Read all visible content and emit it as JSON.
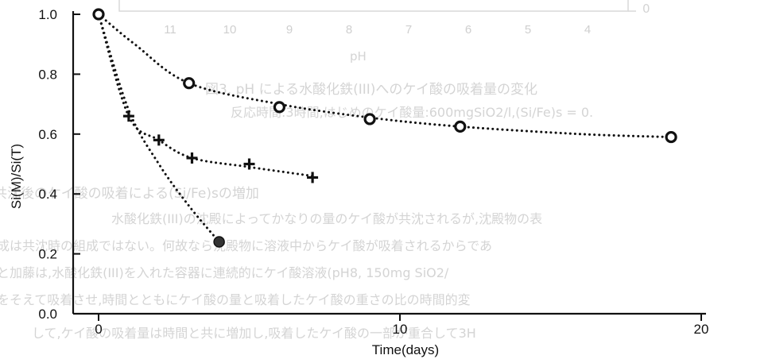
{
  "background_text": {
    "caption": "図3. pH による水酸化鉄(III)へのケイ酸の吸着量の変化",
    "conditions": "反応時間:3時間,はじめのケイ酸量:600mgSiO2/l,(Si/Fe)s = 0.",
    "heading": "共沈後のケイ酸の吸着による(Si/Fe)sの増加",
    "body": [
      "水酸化鉄(III)の沈殿によってかなりの量のケイ酸が共沈されるが,沈殿物の表",
      "成は共沈時の組成ではない。何故なら沈殿物に溶液中からケイ酸が吸着されるからであ",
      "と加藤は,水酸化鉄(III)を入れた容器に連続的にケイ酸溶液(pH8, 150mg SiO2/",
      "をそえて吸着させ,時間とともにケイ酸の量と吸着したケイ酸の重さの比の時間的変",
      "して,ケイ酸の吸着量は時間と共に増加し,吸着したケイ酸の一部が重合して3H"
    ],
    "top_axis_labels": [
      "11",
      "10",
      "9",
      "8",
      "7",
      "6",
      "5",
      "4"
    ],
    "top_axis_title": "pH",
    "top_zero": "0"
  },
  "chart_data": {
    "type": "scatter",
    "title": "",
    "xlabel": "Time(days)",
    "ylabel": "Si(M)/Si(T)",
    "xlim": [
      0,
      20
    ],
    "ylim": [
      0,
      1.0
    ],
    "x_ticks": [
      0,
      10,
      20
    ],
    "y_ticks": [
      0.0,
      0.2,
      0.4,
      0.6,
      0.8,
      1.0
    ],
    "x_tick_labels": [
      "0",
      "10",
      "20"
    ],
    "y_tick_labels": [
      "0.0",
      "0.2",
      "0.4",
      "0.6",
      "0.8",
      "1.0"
    ],
    "grid": false,
    "legend": "none",
    "series": [
      {
        "marker": "open-circle",
        "color": "#111111",
        "points": [
          [
            0,
            1.0
          ],
          [
            3.0,
            0.77
          ],
          [
            6.0,
            0.69
          ],
          [
            9.0,
            0.65
          ],
          [
            12.0,
            0.625
          ],
          [
            19.0,
            0.59
          ]
        ]
      },
      {
        "marker": "plus",
        "color": "#111111",
        "points": [
          [
            1.0,
            0.66
          ],
          [
            2.0,
            0.58
          ],
          [
            3.1,
            0.52
          ],
          [
            5.0,
            0.5
          ],
          [
            7.1,
            0.455
          ]
        ]
      },
      {
        "marker": "filled-circle",
        "color": "#111111",
        "points": [
          [
            4.0,
            0.24
          ]
        ]
      }
    ],
    "curves": [
      {
        "series": 0,
        "points": [
          [
            0,
            1.0
          ],
          [
            1.2,
            0.9
          ],
          [
            3.0,
            0.77
          ],
          [
            6.0,
            0.7
          ],
          [
            9.0,
            0.655
          ],
          [
            12.0,
            0.625
          ],
          [
            16.0,
            0.6
          ],
          [
            19.0,
            0.59
          ]
        ]
      },
      {
        "series": 1,
        "points": [
          [
            0,
            1.0
          ],
          [
            1.0,
            0.66
          ],
          [
            2.0,
            0.58
          ],
          [
            3.1,
            0.52
          ],
          [
            5.0,
            0.49
          ],
          [
            7.1,
            0.46
          ]
        ]
      },
      {
        "series": 2,
        "points": [
          [
            0,
            1.0
          ],
          [
            1.0,
            0.68
          ],
          [
            2.0,
            0.5
          ],
          [
            3.0,
            0.36
          ],
          [
            4.0,
            0.24
          ]
        ]
      }
    ]
  }
}
